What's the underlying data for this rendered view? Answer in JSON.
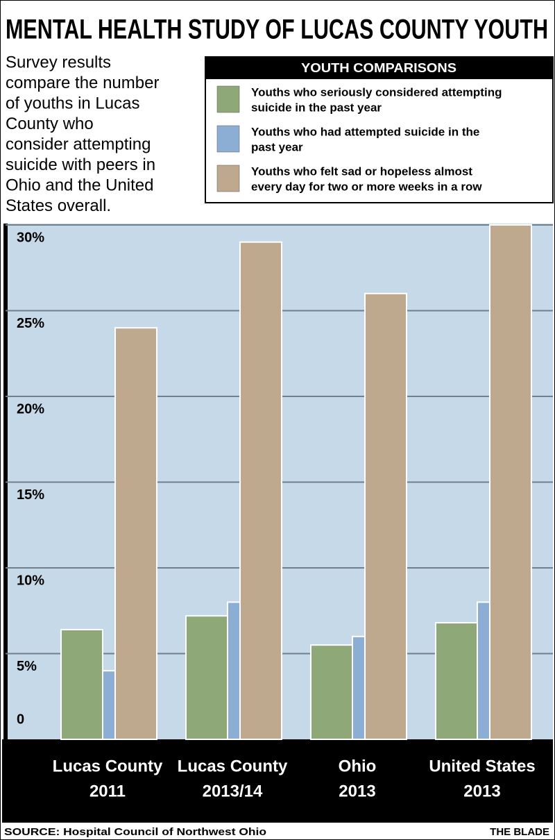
{
  "chart_data": {
    "type": "bar",
    "title": "MENTAL HEALTH STUDY OF LUCAS COUNTY YOUTH",
    "description": [
      "Survey results",
      "compare the number",
      "of youths in Lucas",
      "County who",
      "consider attempting",
      "suicide with peers in",
      "Ohio and the United",
      "States overall."
    ],
    "legend_title": "YOUTH COMPARISONS",
    "categories": [
      [
        "Lucas County",
        "2011"
      ],
      [
        "Lucas County",
        "2013/14"
      ],
      [
        "Ohio",
        "2013"
      ],
      [
        "United States",
        "2013"
      ]
    ],
    "series": [
      {
        "name": [
          "Youths who seriously considered attempting",
          "suicide in the past year"
        ],
        "color": "#8fa878",
        "values": [
          6.4,
          7.2,
          5.5,
          6.8
        ]
      },
      {
        "name": [
          "Youths who had attempted suicide in the",
          "past year"
        ],
        "color": "#8cadd4",
        "values": [
          4.0,
          8.0,
          6.0,
          8.0
        ]
      },
      {
        "name": [
          "Youths who felt sad or hopeless almost",
          "every day for two or more weeks in a row"
        ],
        "color": "#bea88e",
        "values": [
          24.0,
          29.0,
          26.0,
          30.0
        ]
      }
    ],
    "ylim": [
      0,
      30
    ],
    "yticks": [
      0,
      {
        "value": 5,
        "label": "5%"
      },
      {
        "value": 10,
        "label": "10%"
      },
      {
        "value": 15,
        "label": "15%"
      },
      {
        "value": 20,
        "label": "20%"
      },
      {
        "value": 25,
        "label": "25%"
      },
      {
        "value": 30,
        "label": "30%"
      }
    ],
    "grid": true,
    "source": "SOURCE: Hospital Council of Northwest Ohio",
    "credit": "THE BLADE"
  }
}
